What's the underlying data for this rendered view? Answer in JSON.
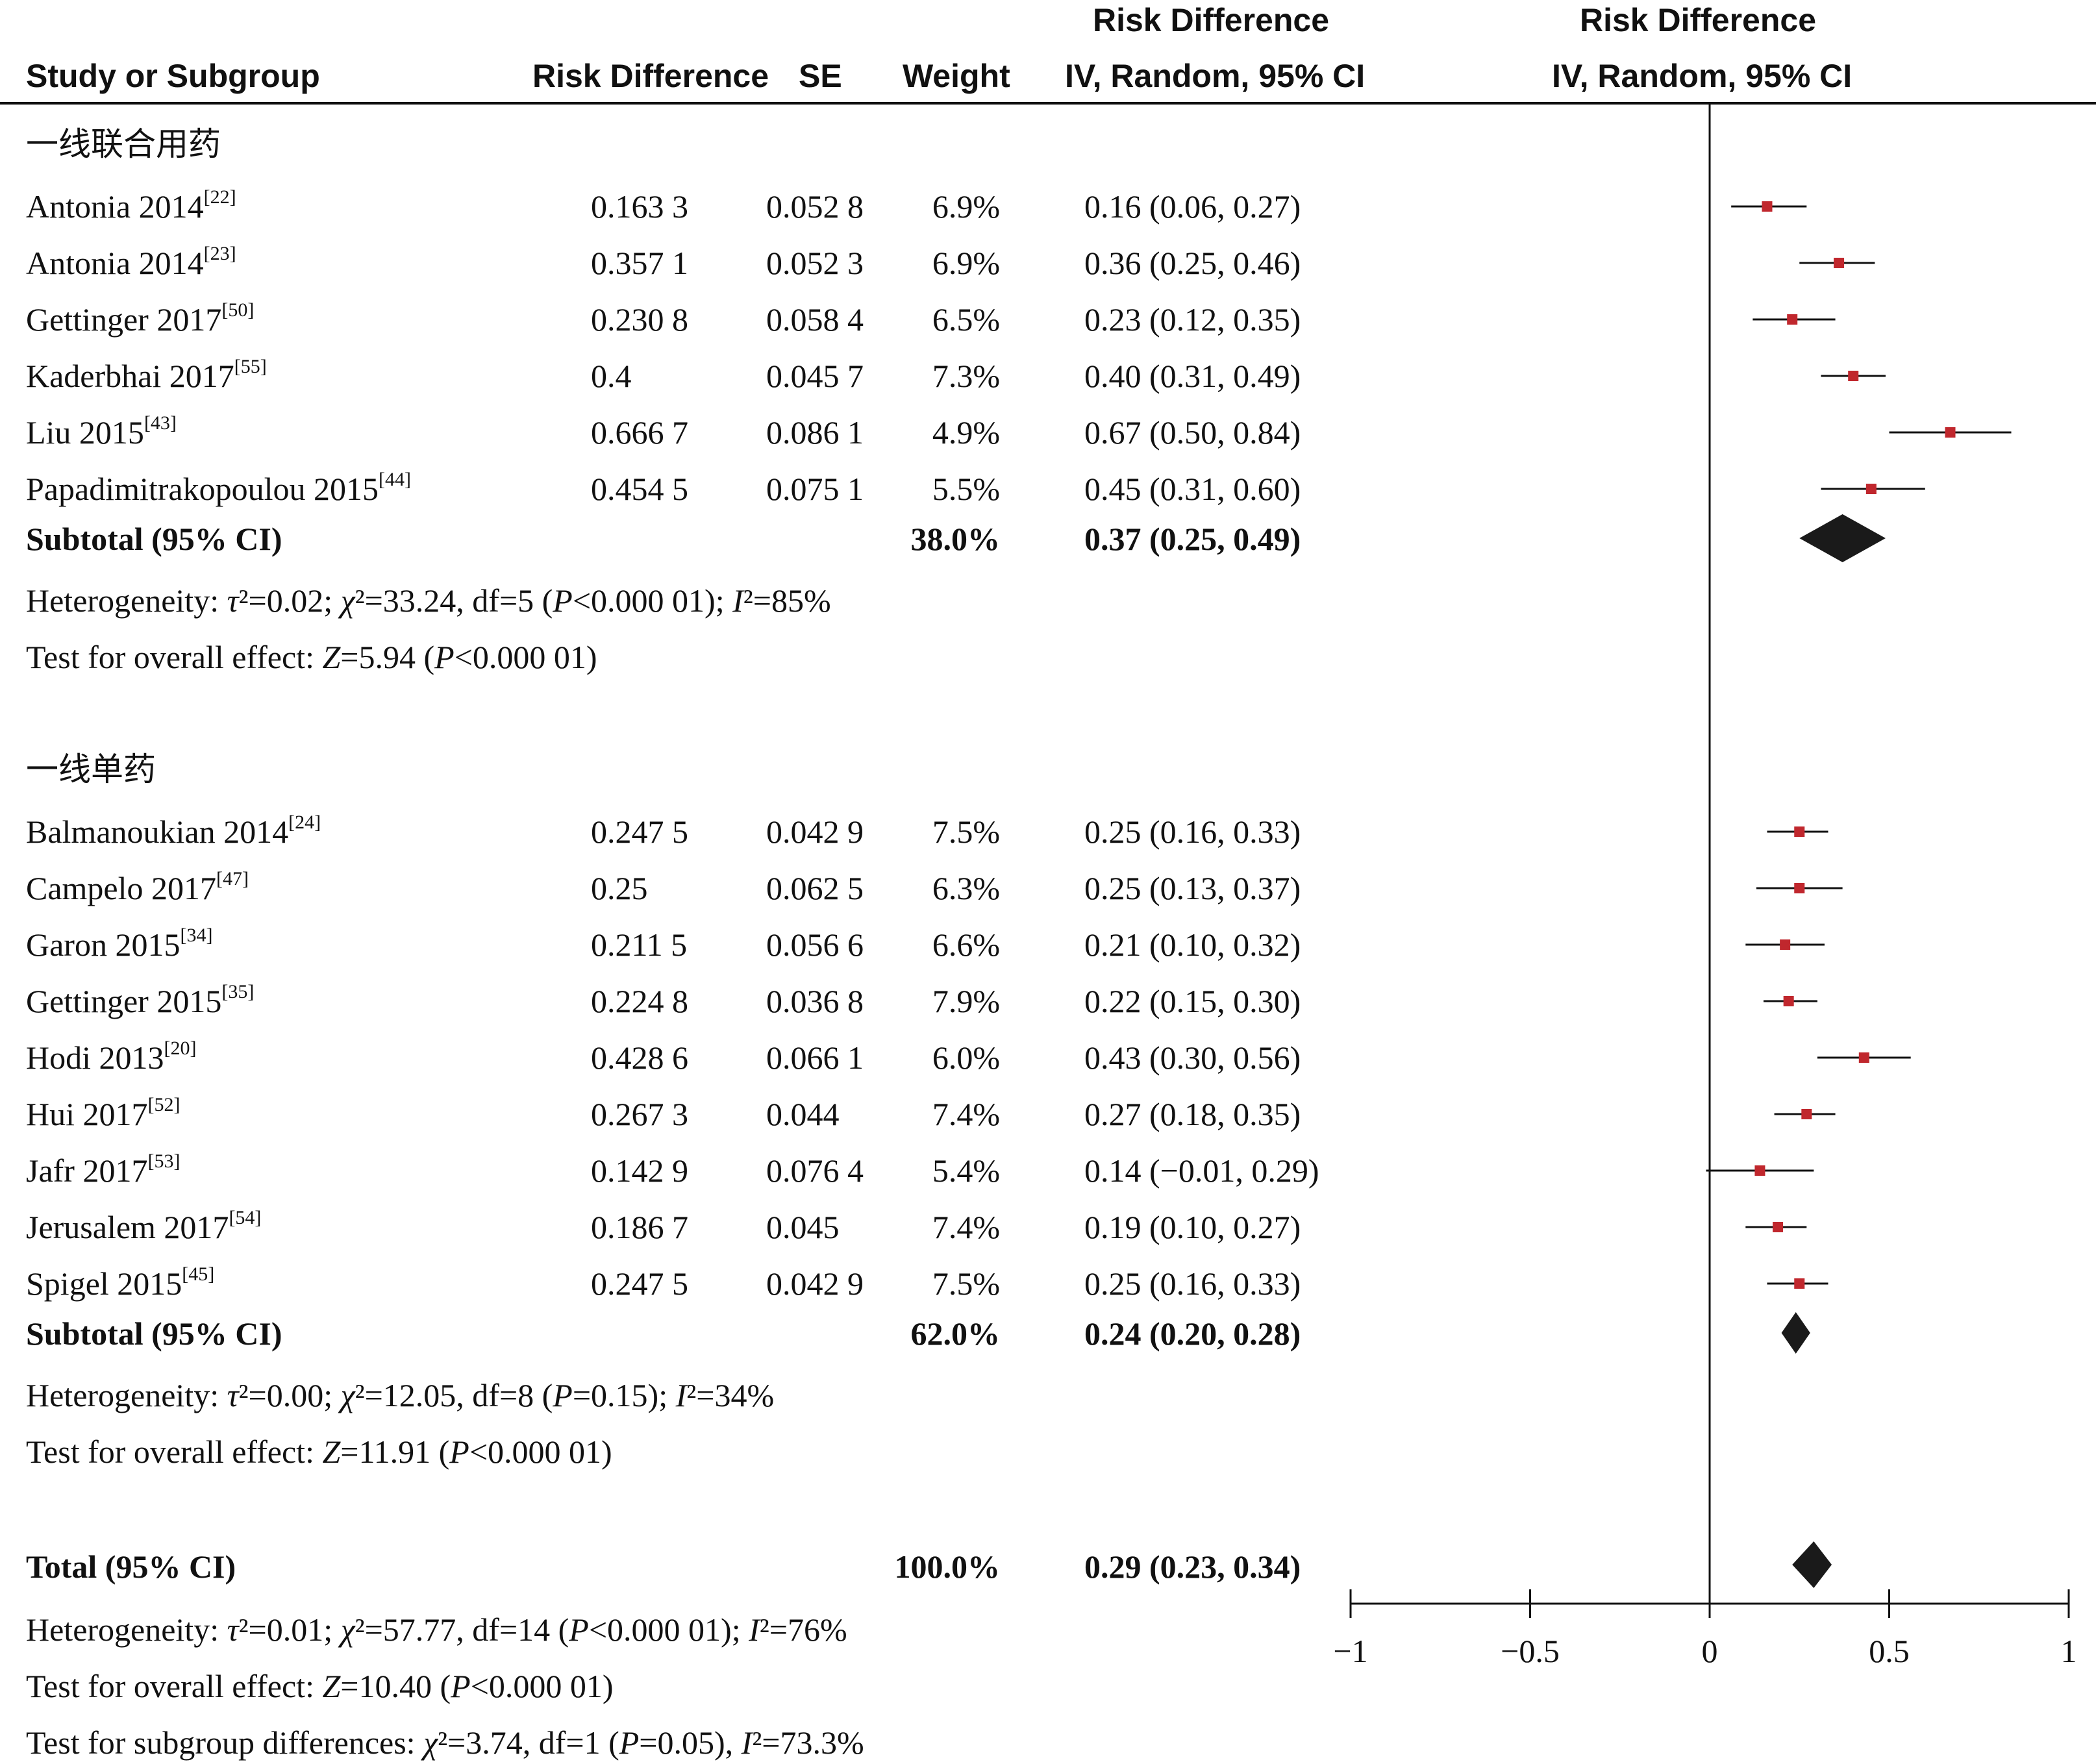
{
  "chart_data": {
    "type": "forest",
    "headers": {
      "study": "Study or Subgroup",
      "rd": "Risk Difference",
      "se": "SE",
      "weight": "Weight",
      "ci_top": "Risk Difference",
      "ci_bottom": "IV, Random, 95% CI",
      "plot_top": "Risk Difference",
      "plot_bottom": "IV, Random, 95% CI"
    },
    "groups": [
      {
        "name": "一线联合用药",
        "studies": [
          {
            "study": "Antonia 2014",
            "ref": "[22]",
            "rd": "0.163 3",
            "se": "0.052 8",
            "weight": "6.9%",
            "ci": "0.16 (0.06, 0.27)",
            "est": 0.16,
            "lo": 0.06,
            "hi": 0.27
          },
          {
            "study": "Antonia 2014",
            "ref": "[23]",
            "rd": "0.357 1",
            "se": "0.052 3",
            "weight": "6.9%",
            "ci": "0.36 (0.25, 0.46)",
            "est": 0.36,
            "lo": 0.25,
            "hi": 0.46
          },
          {
            "study": "Gettinger 2017",
            "ref": "[50]",
            "rd": "0.230 8",
            "se": "0.058 4",
            "weight": "6.5%",
            "ci": "0.23 (0.12, 0.35)",
            "est": 0.23,
            "lo": 0.12,
            "hi": 0.35
          },
          {
            "study": "Kaderbhai 2017",
            "ref": "[55]",
            "rd": "0.4",
            "se": "0.045 7",
            "weight": "7.3%",
            "ci": "0.40 (0.31, 0.49)",
            "est": 0.4,
            "lo": 0.31,
            "hi": 0.49
          },
          {
            "study": "Liu 2015",
            "ref": "[43]",
            "rd": "0.666 7",
            "se": "0.086 1",
            "weight": "4.9%",
            "ci": "0.67 (0.50, 0.84)",
            "est": 0.67,
            "lo": 0.5,
            "hi": 0.84
          },
          {
            "study": "Papadimitrakopoulou 2015",
            "ref": "[44]",
            "rd": "0.454 5",
            "se": "0.075 1",
            "weight": "5.5%",
            "ci": "0.45 (0.31, 0.60)",
            "est": 0.45,
            "lo": 0.31,
            "hi": 0.6
          }
        ],
        "subtotal": {
          "label": "Subtotal (95% CI)",
          "weight": "38.0%",
          "ci": "0.37 (0.25, 0.49)",
          "est": 0.37,
          "lo": 0.25,
          "hi": 0.49
        },
        "heterogeneity": "Heterogeneity: τ²=0.02; χ²=33.24, df=5 (P<0.000 01); I²=85%",
        "overall": "Test for overall effect: Z=5.94 (P<0.000 01)"
      },
      {
        "name": "一线单药",
        "studies": [
          {
            "study": "Balmanoukian 2014",
            "ref": "[24]",
            "rd": "0.247 5",
            "se": "0.042 9",
            "weight": "7.5%",
            "ci": "0.25 (0.16, 0.33)",
            "est": 0.25,
            "lo": 0.16,
            "hi": 0.33
          },
          {
            "study": "Campelo 2017",
            "ref": "[47]",
            "rd": "0.25",
            "se": "0.062 5",
            "weight": "6.3%",
            "ci": "0.25 (0.13, 0.37)",
            "est": 0.25,
            "lo": 0.13,
            "hi": 0.37
          },
          {
            "study": "Garon 2015",
            "ref": "[34]",
            "rd": "0.211 5",
            "se": "0.056 6",
            "weight": "6.6%",
            "ci": "0.21 (0.10, 0.32)",
            "est": 0.21,
            "lo": 0.1,
            "hi": 0.32
          },
          {
            "study": "Gettinger 2015",
            "ref": "[35]",
            "rd": "0.224 8",
            "se": "0.036 8",
            "weight": "7.9%",
            "ci": "0.22 (0.15, 0.30)",
            "est": 0.22,
            "lo": 0.15,
            "hi": 0.3
          },
          {
            "study": "Hodi 2013",
            "ref": "[20]",
            "rd": "0.428 6",
            "se": "0.066 1",
            "weight": "6.0%",
            "ci": "0.43 (0.30, 0.56)",
            "est": 0.43,
            "lo": 0.3,
            "hi": 0.56
          },
          {
            "study": "Hui 2017",
            "ref": "[52]",
            "rd": "0.267 3",
            "se": "0.044",
            "weight": "7.4%",
            "ci": "0.27 (0.18, 0.35)",
            "est": 0.27,
            "lo": 0.18,
            "hi": 0.35
          },
          {
            "study": "Jafr 2017",
            "ref": "[53]",
            "rd": "0.142 9",
            "se": "0.076 4",
            "weight": "5.4%",
            "ci": "0.14 (−0.01, 0.29)",
            "est": 0.14,
            "lo": -0.01,
            "hi": 0.29
          },
          {
            "study": "Jerusalem 2017",
            "ref": "[54]",
            "rd": "0.186 7",
            "se": "0.045",
            "weight": "7.4%",
            "ci": "0.19 (0.10, 0.27)",
            "est": 0.19,
            "lo": 0.1,
            "hi": 0.27
          },
          {
            "study": "Spigel 2015",
            "ref": "[45]",
            "rd": "0.247 5",
            "se": "0.042 9",
            "weight": "7.5%",
            "ci": "0.25 (0.16, 0.33)",
            "est": 0.25,
            "lo": 0.16,
            "hi": 0.33
          }
        ],
        "subtotal": {
          "label": "Subtotal (95% CI)",
          "weight": "62.0%",
          "ci": "0.24 (0.20, 0.28)",
          "est": 0.24,
          "lo": 0.2,
          "hi": 0.28
        },
        "heterogeneity": "Heterogeneity: τ²=0.00; χ²=12.05, df=8 (P=0.15); I²=34%",
        "overall": "Test for overall effect: Z=11.91 (P<0.000 01)"
      }
    ],
    "total": {
      "label": "Total (95% CI)",
      "weight": "100.0%",
      "ci": "0.29 (0.23, 0.34)",
      "est": 0.29,
      "lo": 0.23,
      "hi": 0.34,
      "heterogeneity": "Heterogeneity: τ²=0.01; χ²=57.77, df=14 (P<0.000 01); I²=76%",
      "overall": "Test for overall effect: Z=10.40 (P<0.000 01)",
      "subgroup": "Test for subgroup differences: χ²=3.74, df=1 (P=0.05), I²=73.3%"
    },
    "axis": {
      "xlim": [
        -1,
        1
      ],
      "ticks": [
        -1,
        -0.5,
        0,
        0.5,
        1
      ],
      "tick_labels": [
        "−1",
        "−0.5",
        "0",
        "0.5",
        "1"
      ]
    },
    "colors": {
      "study_marker": "#c0272d",
      "diamond": "#1a1a1a",
      "line": "#111111"
    }
  }
}
